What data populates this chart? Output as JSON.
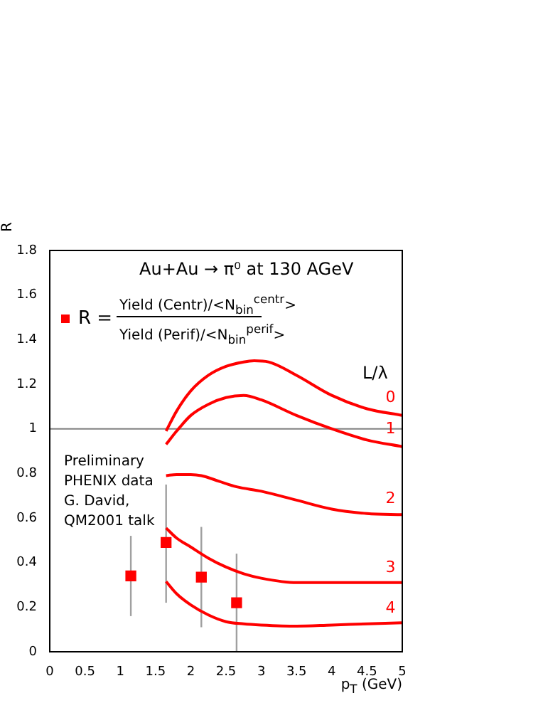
{
  "chart_data": {
    "type": "line",
    "title": "Au+Au → π⁰ at 130 AGeV",
    "xlabel": "p$_{T}$ (GeV)",
    "ylabel": "R",
    "legend_title": "L/λ",
    "legend": "top left",
    "annotations": [
      "Yield (Centr)/<N$_{bin}$$^{centr}$>",
      "Yield (Perif)/<N$_{bin}$$^{perif}$>",
      "Preliminary\nPHENIX data\nG. David,\nQM2001 talk"
    ],
    "xlim": [
      0,
      5
    ],
    "xticks": [
      0,
      0.5,
      1,
      1.5,
      2,
      2.5,
      3,
      3.5,
      4,
      4.5,
      5
    ],
    "ylim": [
      0,
      1.8
    ],
    "yticks": [
      0,
      0.2,
      0.4,
      0.6,
      0.8,
      1,
      1.2,
      1.4,
      1.6,
      1.8
    ],
    "ref_lines": [
      {
        "axis": "y",
        "value": 1,
        "color": "#808080"
      }
    ],
    "series": [
      {
        "name": "0",
        "color": "#ff0000",
        "x": [
          1.65,
          1.8,
          2.0,
          2.25,
          2.5,
          2.75,
          2.9,
          3.1,
          3.5,
          4.0,
          4.5,
          5.0
        ],
        "values": [
          0.99,
          1.08,
          1.17,
          1.24,
          1.28,
          1.3,
          1.305,
          1.3,
          1.24,
          1.15,
          1.09,
          1.06
        ]
      },
      {
        "name": "1",
        "color": "#ff0000",
        "x": [
          1.65,
          1.8,
          2.0,
          2.25,
          2.5,
          2.75,
          3.0,
          3.5,
          4.0,
          4.5,
          5.0
        ],
        "values": [
          0.93,
          0.99,
          1.06,
          1.11,
          1.14,
          1.15,
          1.13,
          1.06,
          1.0,
          0.95,
          0.92
        ]
      },
      {
        "name": "2",
        "color": "#ff0000",
        "x": [
          1.65,
          1.8,
          2.0,
          2.15,
          2.4,
          2.65,
          3.0,
          3.5,
          4.0,
          4.5,
          5.0
        ],
        "values": [
          0.79,
          0.795,
          0.795,
          0.79,
          0.765,
          0.74,
          0.72,
          0.68,
          0.64,
          0.62,
          0.615
        ]
      },
      {
        "name": "3",
        "color": "#ff0000",
        "x": [
          1.65,
          1.8,
          2.0,
          2.25,
          2.5,
          2.75,
          3.0,
          3.5,
          4.0,
          4.5,
          5.0
        ],
        "values": [
          0.555,
          0.51,
          0.47,
          0.42,
          0.38,
          0.35,
          0.33,
          0.31,
          0.31,
          0.31,
          0.31
        ]
      },
      {
        "name": "4",
        "color": "#ff0000",
        "x": [
          1.65,
          1.8,
          2.0,
          2.25,
          2.5,
          2.75,
          3.0,
          3.5,
          4.0,
          4.5,
          5.0
        ],
        "values": [
          0.315,
          0.26,
          0.21,
          0.165,
          0.135,
          0.125,
          0.12,
          0.115,
          0.12,
          0.125,
          0.13
        ]
      },
      {
        "type": "scatter",
        "name": "R =",
        "marker": "square",
        "color": "#ff0000",
        "x": [
          1.15,
          1.65,
          2.15,
          2.65
        ],
        "values": [
          0.34,
          0.49,
          0.335,
          0.22
        ],
        "errors": [
          [
            0.16,
            0.52
          ],
          [
            0.22,
            0.75
          ],
          [
            0.11,
            0.56
          ],
          [
            0,
            0.44
          ]
        ]
      }
    ]
  }
}
